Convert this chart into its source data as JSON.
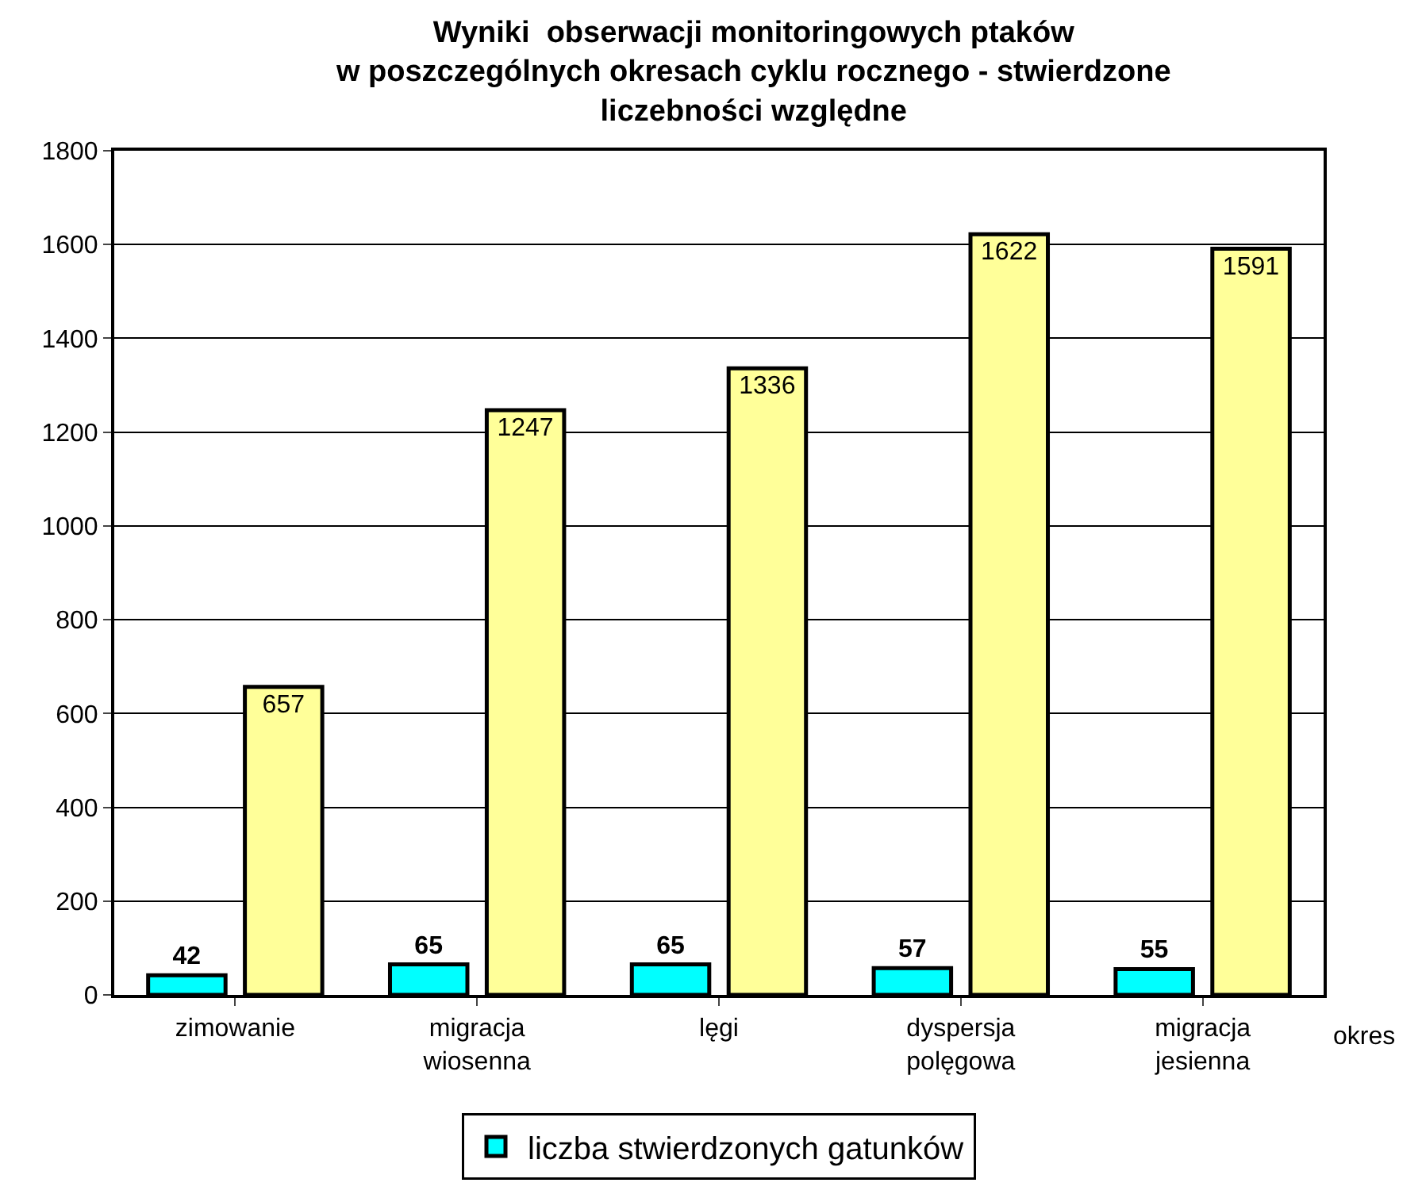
{
  "chart_data": {
    "type": "bar",
    "title": "Wyniki  obserwacji monitoringowych ptaków\nw poszczególnych okresach cyklu rocznego - stwierdzone\nliczebności względne",
    "xlabel": "okres",
    "categories": [
      "zimowanie",
      "migracja\nwiosenna",
      "lęgi",
      "dyspersja\npolęgowa",
      "migracja\njesienna"
    ],
    "series": [
      {
        "name": "liczba stwierdzonych gatunków",
        "color": "#00ffff",
        "values": [
          42,
          65,
          65,
          57,
          55
        ]
      },
      {
        "color": "#ffff99",
        "values": [
          657,
          1247,
          1336,
          1622,
          1591
        ]
      }
    ],
    "ylim": [
      0,
      1800
    ],
    "yticks": [
      0,
      200,
      400,
      600,
      800,
      1000,
      1200,
      1400,
      1600,
      1800
    ],
    "grid": "y",
    "legend": "bottom",
    "data_labels": true
  }
}
